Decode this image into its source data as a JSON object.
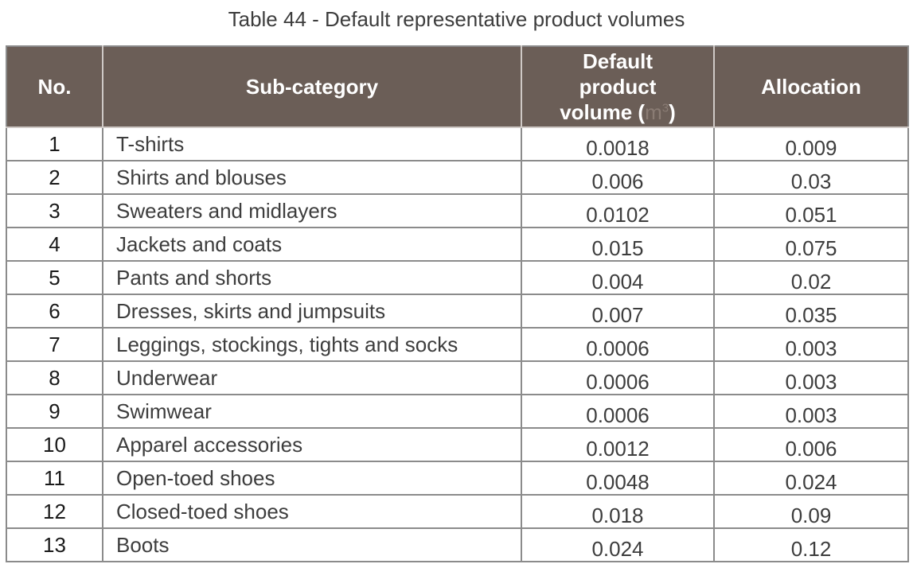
{
  "caption": "Table 44 - Default representative product volumes",
  "headers": {
    "no": "No.",
    "subcategory": "Sub-category",
    "volume_line1": "Default",
    "volume_line2": "product",
    "volume_line3": "volume (",
    "volume_unit": "m",
    "volume_unit_sup": "3",
    "volume_close": ")",
    "allocation": "Allocation"
  },
  "rows": [
    {
      "no": "1",
      "subcategory": "T-shirts",
      "volume": "0.0018",
      "allocation": "0.009"
    },
    {
      "no": "2",
      "subcategory": "Shirts and blouses",
      "volume": "0.006",
      "allocation": "0.03"
    },
    {
      "no": "3",
      "subcategory": "Sweaters and midlayers",
      "volume": "0.0102",
      "allocation": "0.051"
    },
    {
      "no": "4",
      "subcategory": "Jackets and coats",
      "volume": "0.015",
      "allocation": "0.075"
    },
    {
      "no": "5",
      "subcategory": "Pants and shorts",
      "volume": "0.004",
      "allocation": "0.02"
    },
    {
      "no": "6",
      "subcategory": "Dresses, skirts and jumpsuits",
      "volume": "0.007",
      "allocation": "0.035"
    },
    {
      "no": "7",
      "subcategory": "Leggings, stockings, tights and socks",
      "volume": "0.0006",
      "allocation": "0.003"
    },
    {
      "no": "8",
      "subcategory": "Underwear",
      "volume": "0.0006",
      "allocation": "0.003"
    },
    {
      "no": "9",
      "subcategory": "Swimwear",
      "volume": "0.0006",
      "allocation": "0.003"
    },
    {
      "no": "10",
      "subcategory": "Apparel accessories",
      "volume": "0.0012",
      "allocation": "0.006"
    },
    {
      "no": "11",
      "subcategory": "Open-toed shoes",
      "volume": "0.0048",
      "allocation": "0.024"
    },
    {
      "no": "12",
      "subcategory": "Closed-toed shoes",
      "volume": "0.018",
      "allocation": "0.09"
    },
    {
      "no": "13",
      "subcategory": "Boots",
      "volume": "0.024",
      "allocation": "0.12"
    }
  ],
  "colors": {
    "header_background": "#6b5e57",
    "header_text": "#ffffff",
    "unit_text": "#8a7c74",
    "border": "#8b8b8b",
    "body_text": "#3d3d3d"
  }
}
